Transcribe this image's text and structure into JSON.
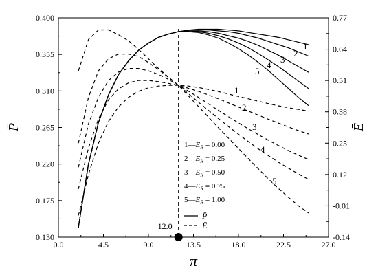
{
  "chart_data": {
    "type": "line",
    "xlabel": "π",
    "ylabel_left": "P̄",
    "ylabel_right": "Ē",
    "xlim": [
      0,
      27
    ],
    "ylim_left": [
      0.13,
      0.4
    ],
    "ylim_right": [
      -0.14,
      0.77
    ],
    "x_ticks": [
      "0.0",
      "4.5",
      "9.0",
      "13.5",
      "18.0",
      "22.5",
      "27.0"
    ],
    "y_left_ticks": [
      "0.130",
      "0.175",
      "0.220",
      "0.265",
      "0.310",
      "0.355",
      "0.400"
    ],
    "y_right_ticks": [
      "-0.14",
      "-0.01",
      "0.12",
      "0.25",
      "0.38",
      "0.51",
      "0.64",
      "0.77"
    ],
    "grid": false,
    "marker": {
      "x": 12.0,
      "label": "12.0"
    },
    "legend": {
      "entries": [
        "1—E_R = 0.00",
        "2—E_R = 0.25",
        "3—E_R = 0.50",
        "4—E_R = 0.75",
        "5—E_R = 1.00"
      ],
      "style_P": "P̄",
      "style_E": "Ē"
    },
    "series_P": [
      {
        "name": "1",
        "axis": "left",
        "style": "solid",
        "x": [
          2,
          3,
          4,
          5,
          6,
          7,
          8,
          9,
          10,
          11,
          12,
          13,
          14,
          15,
          16,
          17,
          18,
          19,
          20,
          21,
          22,
          23,
          24,
          25
        ],
        "y": [
          0.142,
          0.22,
          0.271,
          0.305,
          0.33,
          0.347,
          0.36,
          0.369,
          0.376,
          0.38,
          0.383,
          0.385,
          0.386,
          0.386,
          0.386,
          0.385,
          0.384,
          0.382,
          0.38,
          0.378,
          0.376,
          0.373,
          0.37,
          0.367
        ]
      },
      {
        "name": "2",
        "axis": "left",
        "style": "solid",
        "x": [
          2,
          3,
          4,
          5,
          6,
          7,
          8,
          9,
          10,
          11,
          12,
          13,
          14,
          15,
          16,
          17,
          18,
          19,
          20,
          21,
          22,
          23,
          24,
          25
        ],
        "y": [
          0.142,
          0.22,
          0.271,
          0.305,
          0.33,
          0.347,
          0.36,
          0.369,
          0.376,
          0.38,
          0.383,
          0.385,
          0.385,
          0.385,
          0.384,
          0.383,
          0.381,
          0.378,
          0.375,
          0.371,
          0.367,
          0.363,
          0.358,
          0.353
        ]
      },
      {
        "name": "3",
        "axis": "left",
        "style": "solid",
        "x": [
          2,
          3,
          4,
          5,
          6,
          7,
          8,
          9,
          10,
          11,
          12,
          13,
          14,
          15,
          16,
          17,
          18,
          19,
          20,
          21,
          22,
          23,
          24,
          25
        ],
        "y": [
          0.142,
          0.22,
          0.271,
          0.305,
          0.33,
          0.347,
          0.36,
          0.369,
          0.376,
          0.38,
          0.383,
          0.384,
          0.384,
          0.383,
          0.381,
          0.378,
          0.375,
          0.371,
          0.366,
          0.36,
          0.354,
          0.347,
          0.34,
          0.333
        ]
      },
      {
        "name": "4",
        "axis": "left",
        "style": "solid",
        "x": [
          2,
          3,
          4,
          5,
          6,
          7,
          8,
          9,
          10,
          11,
          12,
          13,
          14,
          15,
          16,
          17,
          18,
          19,
          20,
          21,
          22,
          23,
          24,
          25
        ],
        "y": [
          0.142,
          0.22,
          0.271,
          0.305,
          0.33,
          0.347,
          0.36,
          0.369,
          0.376,
          0.38,
          0.383,
          0.384,
          0.383,
          0.381,
          0.378,
          0.374,
          0.369,
          0.363,
          0.356,
          0.348,
          0.34,
          0.331,
          0.322,
          0.313
        ]
      },
      {
        "name": "5",
        "axis": "left",
        "style": "solid",
        "x": [
          2,
          3,
          4,
          5,
          6,
          7,
          8,
          9,
          10,
          11,
          12,
          13,
          14,
          15,
          16,
          17,
          18,
          19,
          20,
          21,
          22,
          23,
          24,
          25
        ],
        "y": [
          0.142,
          0.22,
          0.271,
          0.305,
          0.33,
          0.347,
          0.36,
          0.369,
          0.376,
          0.38,
          0.383,
          0.383,
          0.382,
          0.379,
          0.375,
          0.369,
          0.362,
          0.354,
          0.345,
          0.335,
          0.324,
          0.313,
          0.302,
          0.292
        ]
      }
    ],
    "series_E": [
      {
        "name": "1",
        "axis": "right",
        "style": "dashed",
        "x": [
          2,
          3,
          4,
          5,
          6,
          7,
          8,
          9,
          10,
          11,
          12,
          13,
          14,
          15,
          16,
          17,
          18,
          19,
          20,
          21,
          22,
          23,
          24,
          25
        ],
        "y": [
          -0.05,
          0.12,
          0.25,
          0.34,
          0.4,
          0.44,
          0.465,
          0.48,
          0.487,
          0.49,
          0.49,
          0.487,
          0.481,
          0.473,
          0.464,
          0.454,
          0.444,
          0.434,
          0.424,
          0.414,
          0.405,
          0.397,
          0.39,
          0.383
        ]
      },
      {
        "name": "2",
        "axis": "right",
        "style": "dashed",
        "x": [
          2,
          3,
          4,
          5,
          6,
          7,
          8,
          9,
          10,
          11,
          12,
          13,
          14,
          15,
          16,
          17,
          18,
          19,
          20,
          21,
          22,
          23,
          24,
          25
        ],
        "y": [
          0.06,
          0.23,
          0.35,
          0.43,
          0.475,
          0.5,
          0.51,
          0.51,
          0.505,
          0.498,
          0.49,
          0.478,
          0.465,
          0.45,
          0.434,
          0.417,
          0.4,
          0.383,
          0.366,
          0.349,
          0.333,
          0.317,
          0.302,
          0.288
        ]
      },
      {
        "name": "3",
        "axis": "right",
        "style": "dashed",
        "x": [
          2,
          3,
          4,
          5,
          6,
          7,
          8,
          9,
          10,
          11,
          12,
          13,
          14,
          15,
          16,
          17,
          18,
          19,
          20,
          21,
          22,
          23,
          24,
          25
        ],
        "y": [
          0.15,
          0.33,
          0.44,
          0.51,
          0.545,
          0.56,
          0.56,
          0.55,
          0.535,
          0.515,
          0.49,
          0.466,
          0.44,
          0.413,
          0.386,
          0.36,
          0.334,
          0.309,
          0.285,
          0.262,
          0.24,
          0.219,
          0.2,
          0.182
        ]
      },
      {
        "name": "4",
        "axis": "right",
        "style": "dashed",
        "x": [
          2,
          3,
          4,
          5,
          6,
          7,
          8,
          9,
          10,
          11,
          12,
          13,
          14,
          15,
          16,
          17,
          18,
          19,
          20,
          21,
          22,
          23,
          24,
          25
        ],
        "y": [
          0.25,
          0.44,
          0.55,
          0.6,
          0.62,
          0.62,
          0.61,
          0.585,
          0.555,
          0.523,
          0.49,
          0.455,
          0.42,
          0.386,
          0.352,
          0.319,
          0.287,
          0.256,
          0.226,
          0.198,
          0.171,
          0.146,
          0.122,
          0.1
        ]
      },
      {
        "name": "5",
        "axis": "right",
        "style": "dashed",
        "x": [
          2,
          3,
          4,
          5,
          6,
          7,
          8,
          9,
          10,
          11,
          12,
          13,
          14,
          15,
          16,
          17,
          18,
          19,
          20,
          21,
          22,
          23,
          24,
          25
        ],
        "y": [
          0.55,
          0.68,
          0.72,
          0.72,
          0.7,
          0.675,
          0.64,
          0.6,
          0.56,
          0.524,
          0.49,
          0.446,
          0.402,
          0.358,
          0.314,
          0.271,
          0.228,
          0.185,
          0.143,
          0.101,
          0.062,
          0.025,
          -0.01,
          -0.04
        ]
      }
    ]
  }
}
